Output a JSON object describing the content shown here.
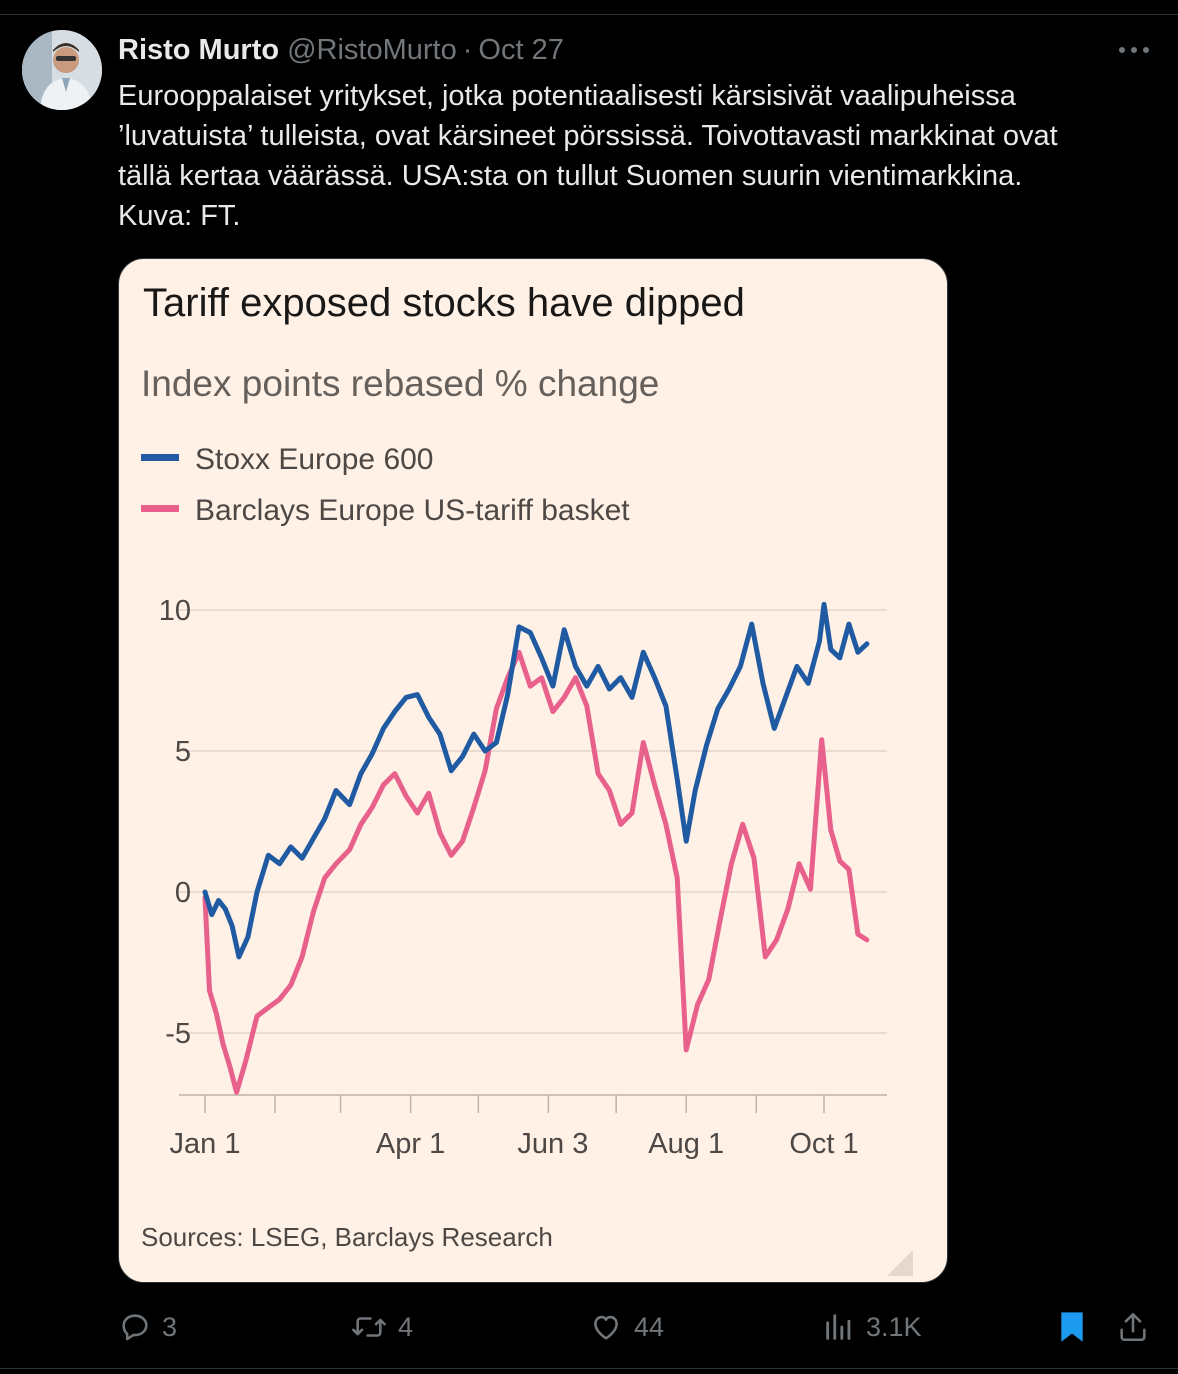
{
  "tweet": {
    "author_name": "Risto Murto",
    "handle": "@RistoMurto",
    "separator": "·",
    "date": "Oct 27",
    "text_lines": [
      "Eurooppalaiset yritykset, jotka potentiaalisesti kärsisivät vaalipuheissa",
      "’luvatuista’ tulleista, ovat kärsineet pörssissä. Toivottavasti markkinat ovat",
      "tällä kertaa väärässä. USA:sta on tullut Suomen suurin vientimarkkina.",
      "Kuva: FT."
    ]
  },
  "actions": {
    "replies": "3",
    "reposts": "4",
    "likes": "44",
    "views": "3.1K"
  },
  "icons": {
    "more": "more-horizontal-icon",
    "reply": "reply-icon",
    "repost": "repost-icon",
    "like": "heart-icon",
    "views": "views-icon",
    "bookmark": "bookmark-icon",
    "share": "share-icon"
  },
  "colors": {
    "background": "#000000",
    "text": "#e7e9ea",
    "muted": "#71767b",
    "bookmark_active": "#1d9bf0",
    "chart_background": "#fff1e5"
  },
  "chart_data": {
    "type": "line",
    "title": "Tariff exposed stocks have dipped",
    "subtitle": "Index points rebased % change",
    "source": "Sources: LSEG, Barclays Research",
    "x_ticks": [
      "Jan 1",
      "Apr 1",
      "Jun 3",
      "Aug 1",
      "Oct 1"
    ],
    "y_ticks": [
      "10",
      "5",
      "0",
      "-5"
    ],
    "ylim": [
      -7.2,
      10.5
    ],
    "grid": true,
    "legend_position": "top-left",
    "series": [
      {
        "name": "Stoxx Europe 600",
        "color": "#1f5aa3",
        "points": [
          [
            "Jan 1",
            0.0
          ],
          [
            "Jan 4",
            -0.8
          ],
          [
            "Jan 7",
            -0.3
          ],
          [
            "Jan 10",
            -0.6
          ],
          [
            "Jan 13",
            -1.2
          ],
          [
            "Jan 16",
            -2.3
          ],
          [
            "Jan 20",
            -1.6
          ],
          [
            "Jan 24",
            0.0
          ],
          [
            "Jan 29",
            1.3
          ],
          [
            "Feb 3",
            1.0
          ],
          [
            "Feb 8",
            1.6
          ],
          [
            "Feb 13",
            1.2
          ],
          [
            "Feb 18",
            1.9
          ],
          [
            "Feb 23",
            2.6
          ],
          [
            "Feb 28",
            3.6
          ],
          [
            "Mar 5",
            3.1
          ],
          [
            "Mar 10",
            4.2
          ],
          [
            "Mar 15",
            4.9
          ],
          [
            "Mar 20",
            5.8
          ],
          [
            "Mar 25",
            6.4
          ],
          [
            "Mar 30",
            6.9
          ],
          [
            "Apr 4",
            7.0
          ],
          [
            "Apr 9",
            6.2
          ],
          [
            "Apr 14",
            5.6
          ],
          [
            "Apr 19",
            4.3
          ],
          [
            "Apr 24",
            4.8
          ],
          [
            "Apr 29",
            5.6
          ],
          [
            "May 4",
            5.0
          ],
          [
            "May 9",
            5.3
          ],
          [
            "May 14",
            7.0
          ],
          [
            "May 19",
            9.4
          ],
          [
            "May 24",
            9.2
          ],
          [
            "May 29",
            8.3
          ],
          [
            "Jun 3",
            7.3
          ],
          [
            "Jun 8",
            9.3
          ],
          [
            "Jun 13",
            8.0
          ],
          [
            "Jun 18",
            7.3
          ],
          [
            "Jun 23",
            8.0
          ],
          [
            "Jun 28",
            7.2
          ],
          [
            "Jul 3",
            7.6
          ],
          [
            "Jul 8",
            6.9
          ],
          [
            "Jul 13",
            8.5
          ],
          [
            "Jul 18",
            7.6
          ],
          [
            "Jul 23",
            6.6
          ],
          [
            "Jul 28",
            4.0
          ],
          [
            "Aug 1",
            1.8
          ],
          [
            "Aug 5",
            3.6
          ],
          [
            "Aug 10",
            5.2
          ],
          [
            "Aug 15",
            6.5
          ],
          [
            "Aug 20",
            7.2
          ],
          [
            "Aug 25",
            8.0
          ],
          [
            "Aug 30",
            9.5
          ],
          [
            "Sep 4",
            7.4
          ],
          [
            "Sep 9",
            5.8
          ],
          [
            "Sep 14",
            6.9
          ],
          [
            "Sep 19",
            8.0
          ],
          [
            "Sep 24",
            7.4
          ],
          [
            "Sep 29",
            8.9
          ],
          [
            "Oct 1",
            10.2
          ],
          [
            "Oct 4",
            8.6
          ],
          [
            "Oct 8",
            8.3
          ],
          [
            "Oct 12",
            9.5
          ],
          [
            "Oct 16",
            8.5
          ],
          [
            "Oct 20",
            8.8
          ]
        ]
      },
      {
        "name": "Barclays Europe US-tariff basket",
        "color": "#e8608c",
        "points": [
          [
            "Jan 1",
            -0.2
          ],
          [
            "Jan 3",
            -3.5
          ],
          [
            "Jan 6",
            -4.3
          ],
          [
            "Jan 9",
            -5.4
          ],
          [
            "Jan 12",
            -6.2
          ],
          [
            "Jan 15",
            -7.1
          ],
          [
            "Jan 19",
            -6.0
          ],
          [
            "Jan 24",
            -4.4
          ],
          [
            "Jan 29",
            -4.1
          ],
          [
            "Feb 3",
            -3.8
          ],
          [
            "Feb 8",
            -3.3
          ],
          [
            "Feb 13",
            -2.3
          ],
          [
            "Feb 18",
            -0.7
          ],
          [
            "Feb 23",
            0.5
          ],
          [
            "Feb 28",
            1.0
          ],
          [
            "Mar 5",
            1.5
          ],
          [
            "Mar 10",
            2.4
          ],
          [
            "Mar 15",
            3.0
          ],
          [
            "Mar 20",
            3.8
          ],
          [
            "Mar 25",
            4.2
          ],
          [
            "Mar 30",
            3.4
          ],
          [
            "Apr 4",
            2.8
          ],
          [
            "Apr 9",
            3.5
          ],
          [
            "Apr 14",
            2.1
          ],
          [
            "Apr 19",
            1.3
          ],
          [
            "Apr 24",
            1.8
          ],
          [
            "Apr 29",
            3.0
          ],
          [
            "May 4",
            4.3
          ],
          [
            "May 9",
            6.5
          ],
          [
            "May 14",
            7.6
          ],
          [
            "May 19",
            8.5
          ],
          [
            "May 24",
            7.3
          ],
          [
            "May 29",
            7.6
          ],
          [
            "Jun 3",
            6.4
          ],
          [
            "Jun 8",
            6.9
          ],
          [
            "Jun 13",
            7.6
          ],
          [
            "Jun 18",
            6.6
          ],
          [
            "Jun 23",
            4.2
          ],
          [
            "Jun 28",
            3.6
          ],
          [
            "Jul 3",
            2.4
          ],
          [
            "Jul 8",
            2.8
          ],
          [
            "Jul 13",
            5.3
          ],
          [
            "Jul 18",
            3.8
          ],
          [
            "Jul 23",
            2.4
          ],
          [
            "Jul 28",
            0.5
          ],
          [
            "Aug 1",
            -5.6
          ],
          [
            "Aug 6",
            -4.0
          ],
          [
            "Aug 11",
            -3.1
          ],
          [
            "Aug 16",
            -1.0
          ],
          [
            "Aug 21",
            1.0
          ],
          [
            "Aug 26",
            2.4
          ],
          [
            "Aug 31",
            1.2
          ],
          [
            "Sep 5",
            -2.3
          ],
          [
            "Sep 10",
            -1.7
          ],
          [
            "Sep 15",
            -0.6
          ],
          [
            "Sep 20",
            1.0
          ],
          [
            "Sep 25",
            0.1
          ],
          [
            "Sep 30",
            5.4
          ],
          [
            "Oct 4",
            2.2
          ],
          [
            "Oct 8",
            1.1
          ],
          [
            "Oct 12",
            0.8
          ],
          [
            "Oct 16",
            -1.5
          ],
          [
            "Oct 20",
            -1.7
          ]
        ]
      }
    ]
  }
}
